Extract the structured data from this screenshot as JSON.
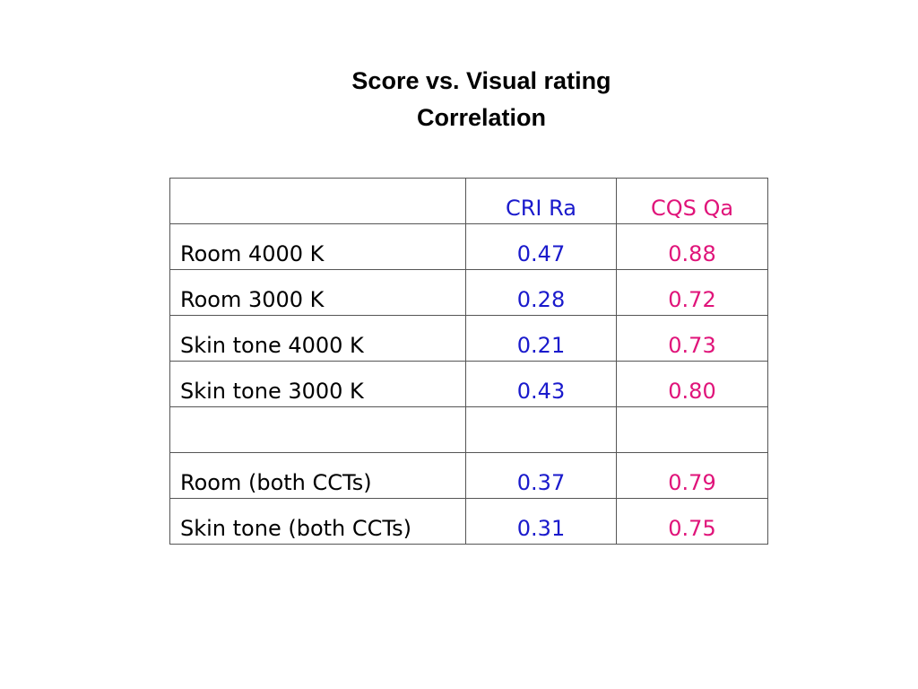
{
  "title": {
    "line1": "Score vs. Visual rating",
    "line2": "Correlation"
  },
  "colors": {
    "cri": "#1a1acc",
    "cqs": "#e0147a",
    "text": "#000000"
  },
  "table": {
    "headers": [
      "",
      "CRI Ra",
      "CQS Qa"
    ],
    "rows": [
      {
        "label": "Room 4000 K",
        "cri": "0.47",
        "cqs": "0.88"
      },
      {
        "label": "Room 3000 K",
        "cri": "0.28",
        "cqs": "0.72"
      },
      {
        "label": "Skin tone 4000 K",
        "cri": "0.21",
        "cqs": "0.73"
      },
      {
        "label": "Skin tone 3000 K",
        "cri": "0.43",
        "cqs": "0.80"
      },
      {
        "label": "",
        "cri": "",
        "cqs": ""
      },
      {
        "label": "Room (both CCTs)",
        "cri": "0.37",
        "cqs": "0.79"
      },
      {
        "label": "Skin tone (both CCTs)",
        "cri": "0.31",
        "cqs": "0.75"
      }
    ]
  }
}
